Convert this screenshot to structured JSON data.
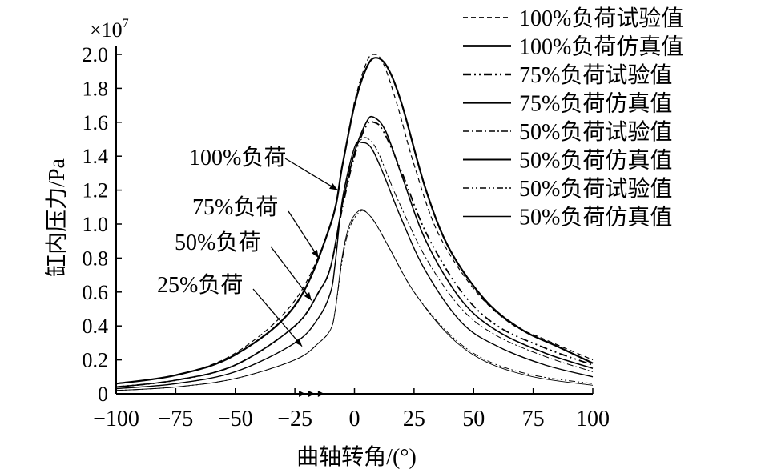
{
  "chart_data": {
    "type": "line",
    "title": "",
    "xlabel": "曲轴转角/(°)",
    "ylabel": "缸内压力/Pa",
    "y_scale_label": "×10",
    "y_scale_exponent": "7",
    "xlim": [
      -100,
      100
    ],
    "ylim": [
      0,
      2.0
    ],
    "xticks": [
      -100,
      -75,
      -50,
      -25,
      0,
      25,
      50,
      75,
      100
    ],
    "xtick_labels": [
      "−100",
      "−75",
      "−50",
      "−25",
      "0",
      "25",
      "50",
      "75",
      "100"
    ],
    "yticks": [
      0,
      0.2,
      0.4,
      0.6,
      0.8,
      1.0,
      1.2,
      1.4,
      1.6,
      1.8,
      2.0
    ],
    "ytick_labels": [
      "0",
      "0.2",
      "0.4",
      "0.6",
      "0.8",
      "1.0",
      "1.2",
      "1.4",
      "1.6",
      "1.8",
      "2.0"
    ],
    "grid": false,
    "legend_position": "top-right",
    "annotations": [
      {
        "text": "100%负荷",
        "target": [
          -7,
          1.2
        ]
      },
      {
        "text": "75%负荷",
        "target": [
          -15,
          0.8
        ]
      },
      {
        "text": "50%负荷",
        "target": [
          -18,
          0.55
        ]
      },
      {
        "text": "25%负荷",
        "target": [
          -22,
          0.28
        ]
      }
    ],
    "series": [
      {
        "name": "100%负荷试验值",
        "style": "dashed",
        "width": 1.2,
        "points": [
          [
            -100,
            0.06
          ],
          [
            -75,
            0.11
          ],
          [
            -50,
            0.24
          ],
          [
            -25,
            0.55
          ],
          [
            -10,
            1.0
          ],
          [
            -5,
            1.35
          ],
          [
            0,
            1.72
          ],
          [
            5,
            1.95
          ],
          [
            8,
            2.0
          ],
          [
            12,
            1.95
          ],
          [
            18,
            1.7
          ],
          [
            25,
            1.35
          ],
          [
            35,
            0.95
          ],
          [
            50,
            0.62
          ],
          [
            65,
            0.42
          ],
          [
            80,
            0.32
          ],
          [
            100,
            0.2
          ]
        ]
      },
      {
        "name": "100%负荷仿真值",
        "style": "solid",
        "width": 2.2,
        "points": [
          [
            -100,
            0.06
          ],
          [
            -75,
            0.11
          ],
          [
            -50,
            0.23
          ],
          [
            -25,
            0.52
          ],
          [
            -10,
            1.0
          ],
          [
            -5,
            1.35
          ],
          [
            0,
            1.7
          ],
          [
            5,
            1.92
          ],
          [
            9,
            1.98
          ],
          [
            14,
            1.92
          ],
          [
            20,
            1.7
          ],
          [
            30,
            1.2
          ],
          [
            40,
            0.85
          ],
          [
            55,
            0.55
          ],
          [
            70,
            0.38
          ],
          [
            85,
            0.28
          ],
          [
            100,
            0.18
          ]
        ]
      },
      {
        "name": "75%负荷试验值",
        "style": "dashdotdot-bold",
        "width": 1.8,
        "points": [
          [
            -100,
            0.04
          ],
          [
            -75,
            0.08
          ],
          [
            -50,
            0.17
          ],
          [
            -25,
            0.4
          ],
          [
            -15,
            0.6
          ],
          [
            -10,
            0.75
          ],
          [
            -5,
            1.1
          ],
          [
            0,
            1.4
          ],
          [
            5,
            1.58
          ],
          [
            8,
            1.6
          ],
          [
            12,
            1.55
          ],
          [
            20,
            1.3
          ],
          [
            30,
            0.95
          ],
          [
            45,
            0.6
          ],
          [
            60,
            0.4
          ],
          [
            80,
            0.27
          ],
          [
            100,
            0.17
          ]
        ]
      },
      {
        "name": "75%负荷仿真值",
        "style": "solid",
        "width": 1.6,
        "points": [
          [
            -100,
            0.04
          ],
          [
            -75,
            0.08
          ],
          [
            -50,
            0.17
          ],
          [
            -25,
            0.4
          ],
          [
            -15,
            0.6
          ],
          [
            -10,
            0.75
          ],
          [
            -5,
            1.12
          ],
          [
            0,
            1.42
          ],
          [
            5,
            1.6
          ],
          [
            8,
            1.63
          ],
          [
            13,
            1.55
          ],
          [
            20,
            1.28
          ],
          [
            30,
            0.9
          ],
          [
            45,
            0.55
          ],
          [
            60,
            0.37
          ],
          [
            80,
            0.24
          ],
          [
            100,
            0.15
          ]
        ]
      },
      {
        "name": "50%负荷试验值",
        "style": "dashdot",
        "width": 1.0,
        "points": [
          [
            -100,
            0.03
          ],
          [
            -75,
            0.06
          ],
          [
            -50,
            0.13
          ],
          [
            -25,
            0.3
          ],
          [
            -15,
            0.45
          ],
          [
            -10,
            0.6
          ],
          [
            -8,
            0.78
          ],
          [
            -5,
            1.15
          ],
          [
            0,
            1.42
          ],
          [
            3,
            1.5
          ],
          [
            6,
            1.5
          ],
          [
            10,
            1.42
          ],
          [
            18,
            1.15
          ],
          [
            30,
            0.8
          ],
          [
            45,
            0.5
          ],
          [
            60,
            0.34
          ],
          [
            80,
            0.22
          ],
          [
            100,
            0.13
          ]
        ]
      },
      {
        "name": "50%负荷仿真值",
        "style": "solid",
        "width": 1.4,
        "points": [
          [
            -100,
            0.03
          ],
          [
            -75,
            0.06
          ],
          [
            -50,
            0.13
          ],
          [
            -25,
            0.3
          ],
          [
            -15,
            0.45
          ],
          [
            -10,
            0.6
          ],
          [
            -8,
            0.78
          ],
          [
            -5,
            1.15
          ],
          [
            0,
            1.45
          ],
          [
            3,
            1.48
          ],
          [
            7,
            1.45
          ],
          [
            12,
            1.3
          ],
          [
            20,
            1.02
          ],
          [
            30,
            0.72
          ],
          [
            45,
            0.42
          ],
          [
            60,
            0.28
          ],
          [
            80,
            0.17
          ],
          [
            100,
            0.1
          ]
        ]
      },
      {
        "name": "50%负荷试验值",
        "style": "dashdotdot",
        "width": 1.0,
        "points": [
          [
            -100,
            0.02
          ],
          [
            -75,
            0.04
          ],
          [
            -50,
            0.09
          ],
          [
            -25,
            0.2
          ],
          [
            -15,
            0.3
          ],
          [
            -10,
            0.38
          ],
          [
            -8,
            0.5
          ],
          [
            -5,
            0.8
          ],
          [
            -2,
            0.98
          ],
          [
            2,
            1.07
          ],
          [
            5,
            1.07
          ],
          [
            9,
            1.0
          ],
          [
            15,
            0.85
          ],
          [
            25,
            0.6
          ],
          [
            40,
            0.35
          ],
          [
            55,
            0.2
          ],
          [
            75,
            0.11
          ],
          [
            100,
            0.06
          ]
        ]
      },
      {
        "name": "50%负荷仿真值",
        "style": "solid-thin",
        "width": 0.9,
        "points": [
          [
            -100,
            0.02
          ],
          [
            -75,
            0.04
          ],
          [
            -50,
            0.09
          ],
          [
            -25,
            0.2
          ],
          [
            -15,
            0.3
          ],
          [
            -10,
            0.38
          ],
          [
            -8,
            0.5
          ],
          [
            -5,
            0.82
          ],
          [
            -2,
            1.0
          ],
          [
            2,
            1.08
          ],
          [
            5,
            1.07
          ],
          [
            9,
            1.0
          ],
          [
            15,
            0.85
          ],
          [
            25,
            0.6
          ],
          [
            40,
            0.34
          ],
          [
            55,
            0.19
          ],
          [
            75,
            0.1
          ],
          [
            100,
            0.05
          ]
        ]
      }
    ]
  }
}
